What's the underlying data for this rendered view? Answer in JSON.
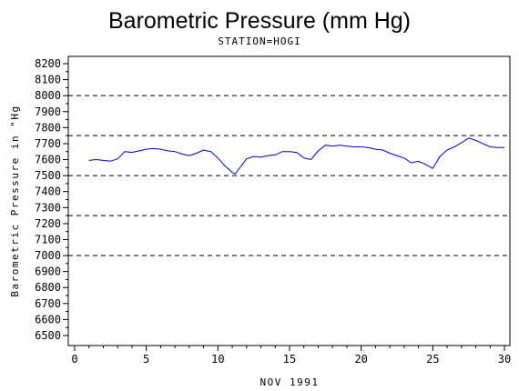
{
  "chart_data": {
    "type": "line",
    "title": "Barometric Pressure (mm Hg)",
    "subtitle": "STATION=HOGI",
    "xlabel": "NOV 1991",
    "ylabel": "Barometric Pressure in \"Hg",
    "xlim": [
      0,
      30
    ],
    "ylim": [
      6500,
      8200
    ],
    "x_ticks": [
      0,
      5,
      10,
      15,
      20,
      25,
      30
    ],
    "y_ticks": [
      6500,
      6600,
      6700,
      6800,
      6900,
      7000,
      7100,
      7200,
      7300,
      7400,
      7500,
      7600,
      7700,
      7800,
      7900,
      8000,
      8100,
      8200
    ],
    "reference_lines": [
      8000,
      7750,
      7500,
      7250,
      7000
    ],
    "grid": false,
    "line_color": "#0000cc",
    "series": [
      {
        "x": [
          1.0,
          1.5,
          2.0,
          2.5,
          3.0,
          3.5,
          4.0,
          4.5,
          5.0,
          5.5,
          6.0,
          6.5,
          7.0,
          7.5,
          8.0,
          8.5,
          9.0,
          9.5,
          10.0,
          10.5,
          11.0,
          11.2,
          11.5,
          12.0,
          12.5,
          13.0,
          13.5,
          14.0,
          14.5,
          15.0,
          15.5,
          16.0,
          16.5,
          17.0,
          17.5,
          18.0,
          18.5,
          19.0,
          19.5,
          20.0,
          20.5,
          21.0,
          21.5,
          22.0,
          22.5,
          23.0,
          23.5,
          24.0,
          24.5,
          25.0,
          25.5,
          26.0,
          26.5,
          27.0,
          27.5,
          28.0,
          28.5,
          29.0,
          29.5,
          30.0
        ],
        "y": [
          7595,
          7600,
          7595,
          7590,
          7605,
          7650,
          7645,
          7655,
          7665,
          7670,
          7665,
          7655,
          7650,
          7635,
          7625,
          7640,
          7660,
          7650,
          7610,
          7560,
          7520,
          7510,
          7545,
          7605,
          7620,
          7615,
          7625,
          7630,
          7650,
          7650,
          7645,
          7610,
          7600,
          7655,
          7690,
          7685,
          7690,
          7685,
          7680,
          7680,
          7675,
          7665,
          7660,
          7640,
          7625,
          7610,
          7580,
          7590,
          7570,
          7545,
          7620,
          7660,
          7680,
          7705,
          7735,
          7720,
          7700,
          7680,
          7675,
          7675
        ]
      }
    ]
  }
}
